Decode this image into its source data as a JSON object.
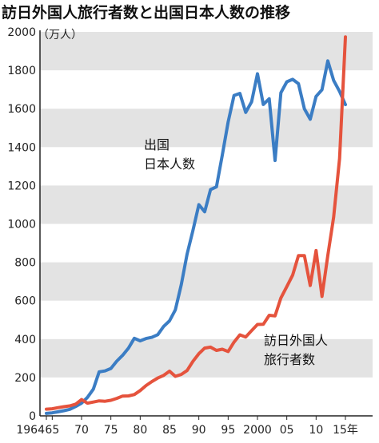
{
  "colors": {
    "band": "#e3e3e3",
    "outbound": "#3b7dc4",
    "inbound": "#e5533d",
    "axis": "#222222"
  },
  "chart_data": {
    "type": "line",
    "title": "訪日外国人旅行者数と出国日本人数の推移",
    "unit_label": "（万人）",
    "ylim": [
      0,
      2000
    ],
    "y_ticks": [
      0,
      200,
      400,
      600,
      800,
      1000,
      1200,
      1400,
      1600,
      1800,
      2000
    ],
    "xlim": [
      1964,
      2015
    ],
    "x_ticks": [
      {
        "value": 1964,
        "label": "1964"
      },
      {
        "value": 1965,
        "label": "65"
      },
      {
        "value": 1970,
        "label": "70"
      },
      {
        "value": 1975,
        "label": "75"
      },
      {
        "value": 1980,
        "label": "80"
      },
      {
        "value": 1985,
        "label": "85"
      },
      {
        "value": 1990,
        "label": "90"
      },
      {
        "value": 1995,
        "label": "95"
      },
      {
        "value": 2000,
        "label": "2000"
      },
      {
        "value": 2005,
        "label": "05"
      },
      {
        "value": 2010,
        "label": "10"
      },
      {
        "value": 2015,
        "label": "15年"
      }
    ],
    "series": [
      {
        "name": "出国日本人数",
        "label_lines": [
          "出国",
          "日本人数"
        ],
        "color": "#3b7dc4",
        "points": [
          [
            1964,
            13
          ],
          [
            1965,
            16
          ],
          [
            1966,
            21
          ],
          [
            1967,
            27
          ],
          [
            1968,
            34
          ],
          [
            1969,
            49
          ],
          [
            1970,
            66
          ],
          [
            1971,
            96
          ],
          [
            1972,
            139
          ],
          [
            1973,
            229
          ],
          [
            1974,
            234
          ],
          [
            1975,
            247
          ],
          [
            1976,
            285
          ],
          [
            1977,
            315
          ],
          [
            1978,
            353
          ],
          [
            1979,
            404
          ],
          [
            1980,
            391
          ],
          [
            1981,
            403
          ],
          [
            1982,
            409
          ],
          [
            1983,
            423
          ],
          [
            1984,
            466
          ],
          [
            1985,
            495
          ],
          [
            1986,
            552
          ],
          [
            1987,
            683
          ],
          [
            1988,
            843
          ],
          [
            1989,
            966
          ],
          [
            1990,
            1100
          ],
          [
            1991,
            1063
          ],
          [
            1992,
            1179
          ],
          [
            1993,
            1193
          ],
          [
            1994,
            1358
          ],
          [
            1995,
            1530
          ],
          [
            1996,
            1669
          ],
          [
            1997,
            1680
          ],
          [
            1998,
            1581
          ],
          [
            1999,
            1636
          ],
          [
            2000,
            1782
          ],
          [
            2001,
            1622
          ],
          [
            2002,
            1652
          ],
          [
            2003,
            1330
          ],
          [
            2004,
            1683
          ],
          [
            2005,
            1740
          ],
          [
            2006,
            1753
          ],
          [
            2007,
            1730
          ],
          [
            2008,
            1599
          ],
          [
            2009,
            1545
          ],
          [
            2010,
            1664
          ],
          [
            2011,
            1699
          ],
          [
            2012,
            1849
          ],
          [
            2013,
            1747
          ],
          [
            2014,
            1690
          ],
          [
            2015,
            1621
          ]
        ]
      },
      {
        "name": "訪日外国人旅行者数",
        "label_lines": [
          "訪日外国人",
          "旅行者数"
        ],
        "color": "#e5533d",
        "points": [
          [
            1964,
            35
          ],
          [
            1965,
            37
          ],
          [
            1966,
            43
          ],
          [
            1967,
            48
          ],
          [
            1968,
            52
          ],
          [
            1969,
            61
          ],
          [
            1970,
            85
          ],
          [
            1971,
            66
          ],
          [
            1972,
            72
          ],
          [
            1973,
            78
          ],
          [
            1974,
            76
          ],
          [
            1975,
            81
          ],
          [
            1976,
            91
          ],
          [
            1977,
            103
          ],
          [
            1978,
            104
          ],
          [
            1979,
            111
          ],
          [
            1980,
            132
          ],
          [
            1981,
            158
          ],
          [
            1982,
            179
          ],
          [
            1983,
            197
          ],
          [
            1984,
            211
          ],
          [
            1985,
            233
          ],
          [
            1986,
            206
          ],
          [
            1987,
            216
          ],
          [
            1988,
            236
          ],
          [
            1989,
            284
          ],
          [
            1990,
            324
          ],
          [
            1991,
            353
          ],
          [
            1992,
            358
          ],
          [
            1993,
            341
          ],
          [
            1994,
            347
          ],
          [
            1995,
            335
          ],
          [
            1996,
            384
          ],
          [
            1997,
            422
          ],
          [
            1998,
            411
          ],
          [
            1999,
            444
          ],
          [
            2000,
            476
          ],
          [
            2001,
            477
          ],
          [
            2002,
            524
          ],
          [
            2003,
            521
          ],
          [
            2004,
            614
          ],
          [
            2005,
            673
          ],
          [
            2006,
            733
          ],
          [
            2007,
            835
          ],
          [
            2008,
            835
          ],
          [
            2009,
            679
          ],
          [
            2010,
            861
          ],
          [
            2011,
            622
          ],
          [
            2012,
            836
          ],
          [
            2013,
            1036
          ],
          [
            2014,
            1341
          ],
          [
            2015,
            1974
          ]
        ]
      }
    ]
  }
}
